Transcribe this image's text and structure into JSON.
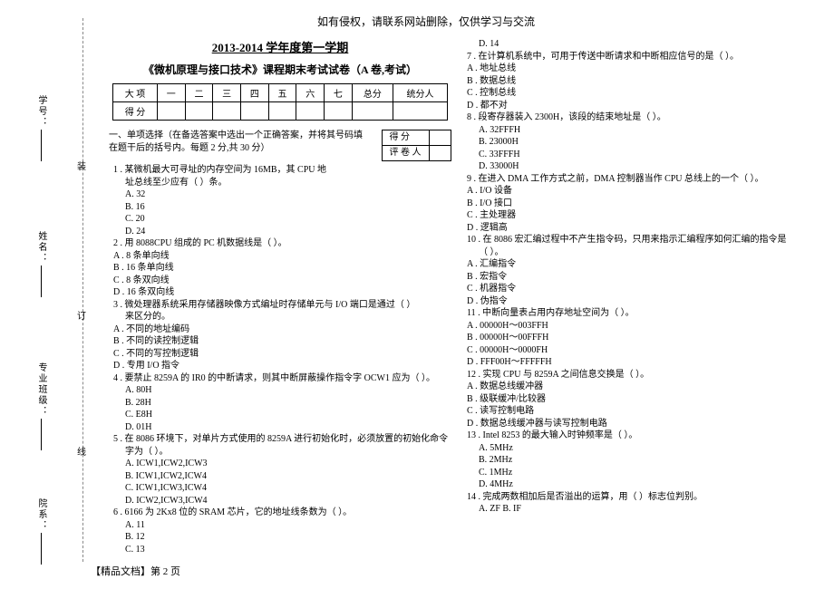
{
  "notice": "如有侵权，请联系网站删除，仅供学习与交流",
  "title": "2013-2014 学年度第一学期",
  "subtitle": "《微机原理与接口技术》课程期末考试试卷（A 卷,考试）",
  "score_header": [
    "大 项",
    "一",
    "二",
    "三",
    "四",
    "五",
    "六",
    "七",
    "总分",
    "统分人"
  ],
  "score_row2": "得 分",
  "section1_line1": "一、单项选择（在备选答案中选出一个正确答案，并将其号码填",
  "section1_line2": "在题干后的括号内。每题 2 分,共 30 分）",
  "mini_table": {
    "r1": "得    分",
    "r2": "评 卷 人"
  },
  "left_qs": [
    "1 . 某微机最大可寻址的内存空间为 16MB，其 CPU 地",
    "址总线至少应有（        ）条。",
    "A.  32",
    "B.  16",
    "C.  20",
    "D.  24",
    "2 . 用 8088CPU 组成的 PC 机数据线是（        ）。",
    "A . 8 条单向线",
    "B . 16 条单向线",
    "C . 8 条双向线",
    "D . 16 条双向线",
    "3 . 微处理器系统采用存储器映像方式编址时存储单元与 I/O 端口是通过（        ）",
    "来区分的。",
    "A . 不同的地址编码",
    "B . 不同的读控制逻辑",
    "C . 不同的写控制逻辑",
    "D . 专用 I/O 指令",
    "4 . 要禁止 8259A 的 IR0 的中断请求，则其中断屏蔽操作指令字 OCW1 应为（        ）。",
    "A.  80H",
    "B.  28H",
    "C.  E8H",
    "D.  01H",
    "5 . 在 8086 环境下，对单片方式使用的 8259A 进行初始化时，必须放置的初始化命令",
    "字为（        ）。",
    "A.  ICW1,ICW2,ICW3",
    "B.  ICW1,ICW2,ICW4",
    "C.  ICW1,ICW3,ICW4",
    "D.  ICW2,ICW3,ICW4",
    "6 . 6166 为 2Kx8 位的 SRAM 芯片，它的地址线条数为（        ）。",
    "A.  11",
    "B.  12",
    "C.  13"
  ],
  "right_qs": [
    "D.  14",
    "7 . 在计算机系统中，可用于传送中断请求和中断相应信号的是（        ）。",
    "A . 地址总线",
    "B . 数据总线",
    "C . 控制总线",
    "D . 都不对",
    "8 . 段寄存器装入 2300H，该段的结束地址是（        ）。",
    "A.  32FFFH",
    "B.  23000H",
    "C.  33FFFH",
    "D.  33000H",
    "9 . 在进入 DMA 工作方式之前，DMA 控制器当作 CPU 总线上的一个（        ）。",
    "A . I/O 设备",
    "B . I/O 接口",
    "C . 主处理器",
    "D . 逻辑高",
    "10 . 在 8086 宏汇编过程中不产生指令码，只用来指示汇编程序如何汇编的指令是",
    "（        ）。",
    "A . 汇编指令",
    "B . 宏指令",
    "C . 机器指令",
    "D . 伪指令",
    "11 . 中断向量表占用内存地址空间为（        ）。",
    "A . 00000H～003FFH",
    "B . 00000H～00FFFH",
    "C . 00000H～0000FH",
    "D . FFF00H～FFFFFH",
    "12 . 实现 CPU 与 8259A 之间信息交换是（        ）。",
    "A . 数据总线缓冲器",
    "B . 级联缓冲/比较器",
    "C . 读写控制电路",
    "D . 数据总线缓冲器与读写控制电路",
    "13 . Intel 8253 的最大输入时钟频率是（        ）。",
    "A.  5MHz",
    "B.  2MHz",
    "C.  1MHz",
    "D.  4MHz",
    "14 . 完成两数相加后是否溢出的运算，用（        ）标志位判别。",
    "A.  ZF      B.  IF"
  ],
  "binding": {
    "char1": "装",
    "char2": "订",
    "char3": "线",
    "labels": [
      "学号：",
      "姓名：",
      "专业班级：",
      "院系："
    ]
  },
  "footer": "【精品文档】第 2 页"
}
